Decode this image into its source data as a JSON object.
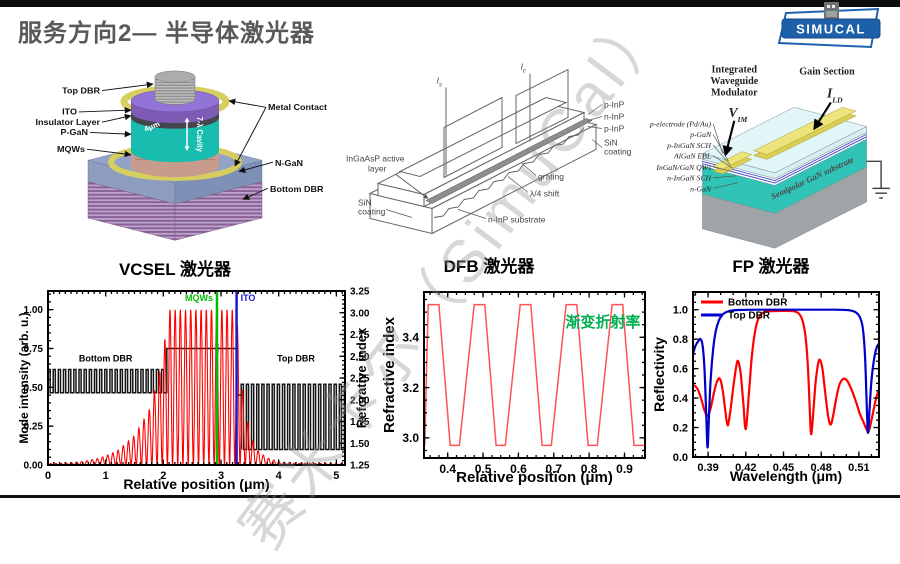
{
  "header": {
    "title": "服务方向2— 半导体激光器",
    "logo": {
      "text": "SIMUCAL"
    }
  },
  "watermark": {
    "text": "赛米卡尔（SimuCal）"
  },
  "panels": {
    "vcsel": {
      "caption": "VCSEL 激光器",
      "labels": {
        "top_dbr": "Top DBR",
        "metal_contact": "Metal Contact",
        "ito": "ITO",
        "insulator": "Insulator Layer",
        "p_gan": "P-GaN",
        "mqws": "MQWs",
        "n_gan": "N-GaN",
        "bottom_dbr": "Bottom DBR",
        "aperture": "4μm",
        "cavity": "7-λ Cavity"
      }
    },
    "dfb": {
      "caption": "DFB 激光器",
      "labels": {
        "current_s_main": "I",
        "current_s_sub": "s",
        "current_c_main": "I",
        "current_c_sub": "c",
        "active_layer_line1": "InGaAsP active",
        "active_layer_line2": "layer",
        "p_inp_top": "p-InP",
        "n_inp": "n-InP",
        "p_inp_bottom": "p-InP",
        "sin_right_line1": "SiN",
        "sin_right_line2": "coating",
        "grating": "grating",
        "quarter_wave_shift": "λ/4 shift",
        "substrate": "n-InP substrate",
        "sin_left_line1": "SiN",
        "sin_left_line2": "coating"
      }
    },
    "fp": {
      "caption": "FP 激光器",
      "labels": {
        "modulator_line1": "Integrated",
        "modulator_line2": "Waveguide",
        "modulator_line3": "Modulator",
        "v_main": "V",
        "v_sub": "IM",
        "gain_section": "Gain Section",
        "i_main": "I",
        "i_sub": "LD",
        "layers": [
          "p-electrode (Pd/Au)",
          "p-GaN",
          "p-InGaN SCH",
          "AlGaN EBL",
          "InGaN/GaN QWs",
          "n-InGaN SCH",
          "n-GaN"
        ],
        "substrate": "Semipolar GaN substrate"
      }
    }
  },
  "chart_data": [
    {
      "type": "line",
      "xlabel": "Relative position (μm)",
      "ylabel_left": "Mode intensity (arb. u.)",
      "ylabel_right": "Refcrative index",
      "xlim": [
        0,
        5.15
      ],
      "ylim_left": [
        0,
        1.12
      ],
      "ylim_right": [
        1.25,
        3.25
      ],
      "xticks": [
        "0",
        "1",
        "2",
        "3",
        "4",
        "5"
      ],
      "yticks_left": [
        "0.00",
        "0.25",
        "0.50",
        "0.75",
        "1.00"
      ],
      "yticks_right": [
        "1.25",
        "1.50",
        "1.75",
        "2.00",
        "2.25",
        "2.50",
        "2.75",
        "3.00",
        "3.25"
      ],
      "series": [
        {
          "name": "mode-intensity",
          "color": "#ff0000",
          "period_um": 0.09,
          "envelope": [
            [
              0,
              0.008
            ],
            [
              0.3,
              0.012
            ],
            [
              0.6,
              0.022
            ],
            [
              0.9,
              0.045
            ],
            [
              1.2,
              0.09
            ],
            [
              1.5,
              0.19
            ],
            [
              1.75,
              0.35
            ],
            [
              1.95,
              0.62
            ],
            [
              2.02,
              0.79
            ],
            [
              2.08,
              1.0
            ],
            [
              3.26,
              1.0
            ],
            [
              3.32,
              0.75
            ],
            [
              3.38,
              0.45
            ],
            [
              3.5,
              0.2
            ],
            [
              3.62,
              0.1
            ],
            [
              3.78,
              0.05
            ],
            [
              4.0,
              0.02
            ],
            [
              4.3,
              0.012
            ],
            [
              5.15,
              0.008
            ]
          ]
        },
        {
          "name": "index-profile",
          "color": "#151515",
          "bottom_dbr": {
            "x0": 0,
            "x1": 2.06,
            "low": 0.465,
            "high": 0.615,
            "period": 0.0895
          },
          "cavity": {
            "x0": 2.06,
            "x1": 3.27,
            "level": 0.75
          },
          "ito_step": {
            "x0": 3.27,
            "x1": 3.35,
            "level": 0.45
          },
          "top_dbr": {
            "x0": 3.35,
            "x1": 5.15,
            "low": 0.1,
            "high": 0.52,
            "period": 0.0895
          }
        }
      ],
      "annotations": {
        "mqws": {
          "label": "MQWs",
          "x": 2.93,
          "color": "#00bb00"
        },
        "ito": {
          "label": "ITO",
          "x": 3.27,
          "color": "#1a1acc"
        },
        "bottom_dbr": {
          "label": "Bottom DBR",
          "x": 1.0,
          "y": 0.665
        },
        "top_dbr": {
          "label": "Top DBR",
          "x": 4.3,
          "y": 0.665
        }
      }
    },
    {
      "type": "line",
      "xlabel": "Relative position (μm)",
      "ylabel": "Refractive index",
      "xlim": [
        0.333,
        0.958
      ],
      "ylim": [
        2.92,
        3.58
      ],
      "xticks": [
        "0.4",
        "0.5",
        "0.6",
        "0.7",
        "0.8",
        "0.9"
      ],
      "yticks": [
        "3.0",
        "3.2",
        "3.4"
      ],
      "annotation": {
        "label": "渐变折射率",
        "color": "#00b050",
        "x": 0.945,
        "y": 3.44
      },
      "series": [
        {
          "name": "graded-index-profile",
          "color": "#ff5252",
          "points": [
            [
              0.335,
              2.97
            ],
            [
              0.345,
              3.53
            ],
            [
              0.375,
              3.53
            ],
            [
              0.407,
              2.97
            ],
            [
              0.433,
              2.97
            ],
            [
              0.475,
              3.53
            ],
            [
              0.505,
              3.53
            ],
            [
              0.537,
              2.97
            ],
            [
              0.563,
              2.97
            ],
            [
              0.605,
              3.53
            ],
            [
              0.635,
              3.53
            ],
            [
              0.667,
              2.97
            ],
            [
              0.693,
              2.97
            ],
            [
              0.735,
              3.53
            ],
            [
              0.765,
              3.53
            ],
            [
              0.797,
              2.97
            ],
            [
              0.823,
              2.97
            ],
            [
              0.865,
              3.53
            ],
            [
              0.895,
              3.53
            ],
            [
              0.927,
              2.97
            ],
            [
              0.953,
              2.97
            ],
            [
              0.958,
              2.97
            ]
          ]
        }
      ]
    },
    {
      "type": "line",
      "xlabel": "Wavelength (μm)",
      "ylabel": "Reflectivity",
      "xlim": [
        0.378,
        0.526
      ],
      "ylim": [
        0,
        1.12
      ],
      "xticks": [
        "0.39",
        "0.42",
        "0.45",
        "0.48",
        "0.51"
      ],
      "yticks": [
        "0.0",
        "0.2",
        "0.4",
        "0.6",
        "0.8",
        "1.0"
      ],
      "legend": {
        "position": "top-left",
        "entries": [
          "Bottom DBR",
          "Top DBR"
        ]
      },
      "series": [
        {
          "name": "Bottom DBR",
          "color": "#ff0000",
          "points": [
            [
              0.378,
              0.49
            ],
            [
              0.381,
              0.47
            ],
            [
              0.384,
              0.41
            ],
            [
              0.387,
              0.32
            ],
            [
              0.3895,
              0.28
            ],
            [
              0.392,
              0.33
            ],
            [
              0.395,
              0.45
            ],
            [
              0.3975,
              0.52
            ],
            [
              0.3995,
              0.53
            ],
            [
              0.4015,
              0.46
            ],
            [
              0.4035,
              0.33
            ],
            [
              0.4055,
              0.215
            ],
            [
              0.4075,
              0.3
            ],
            [
              0.41,
              0.47
            ],
            [
              0.4125,
              0.62
            ],
            [
              0.414,
              0.65
            ],
            [
              0.416,
              0.56
            ],
            [
              0.418,
              0.37
            ],
            [
              0.42,
              0.19
            ],
            [
              0.4225,
              0.43
            ],
            [
              0.425,
              0.7
            ],
            [
              0.428,
              0.88
            ],
            [
              0.431,
              0.955
            ],
            [
              0.435,
              0.985
            ],
            [
              0.44,
              0.99
            ],
            [
              0.45,
              0.992
            ],
            [
              0.458,
              0.99
            ],
            [
              0.462,
              0.975
            ],
            [
              0.465,
              0.93
            ],
            [
              0.4675,
              0.82
            ],
            [
              0.4695,
              0.6
            ],
            [
              0.471,
              0.3
            ],
            [
              0.472,
              0.155
            ],
            [
              0.4735,
              0.28
            ],
            [
              0.4755,
              0.5
            ],
            [
              0.4775,
              0.63
            ],
            [
              0.479,
              0.66
            ],
            [
              0.481,
              0.6
            ],
            [
              0.483,
              0.45
            ],
            [
              0.4855,
              0.28
            ],
            [
              0.4875,
              0.22
            ],
            [
              0.4895,
              0.28
            ],
            [
              0.492,
              0.4
            ],
            [
              0.4945,
              0.49
            ],
            [
              0.4975,
              0.53
            ],
            [
              0.5005,
              0.52
            ],
            [
              0.504,
              0.46
            ],
            [
              0.5075,
              0.38
            ],
            [
              0.5105,
              0.3
            ],
            [
              0.5135,
              0.24
            ],
            [
              0.516,
              0.19
            ],
            [
              0.5175,
              0.17
            ],
            [
              0.519,
              0.21
            ],
            [
              0.5215,
              0.31
            ],
            [
              0.524,
              0.41
            ],
            [
              0.526,
              0.45
            ]
          ]
        },
        {
          "name": "Top DBR",
          "color": "#0000cc",
          "points": [
            [
              0.378,
              0.7
            ],
            [
              0.38,
              0.755
            ],
            [
              0.3825,
              0.79
            ],
            [
              0.384,
              0.8
            ],
            [
              0.3855,
              0.765
            ],
            [
              0.387,
              0.62
            ],
            [
              0.3883,
              0.35
            ],
            [
              0.3895,
              0.065
            ],
            [
              0.3907,
              0.28
            ],
            [
              0.392,
              0.52
            ],
            [
              0.394,
              0.73
            ],
            [
              0.396,
              0.85
            ],
            [
              0.3985,
              0.925
            ],
            [
              0.401,
              0.962
            ],
            [
              0.404,
              0.982
            ],
            [
              0.408,
              0.993
            ],
            [
              0.414,
              0.998
            ],
            [
              0.43,
              1.0
            ],
            [
              0.46,
              1.0
            ],
            [
              0.49,
              1.0
            ],
            [
              0.5,
              0.998
            ],
            [
              0.504,
              0.993
            ],
            [
              0.5075,
              0.982
            ],
            [
              0.5105,
              0.955
            ],
            [
              0.513,
              0.88
            ],
            [
              0.5148,
              0.7
            ],
            [
              0.516,
              0.42
            ],
            [
              0.5172,
              0.165
            ],
            [
              0.5185,
              0.33
            ],
            [
              0.52,
              0.52
            ],
            [
              0.522,
              0.66
            ],
            [
              0.524,
              0.74
            ],
            [
              0.526,
              0.77
            ]
          ]
        }
      ]
    }
  ]
}
